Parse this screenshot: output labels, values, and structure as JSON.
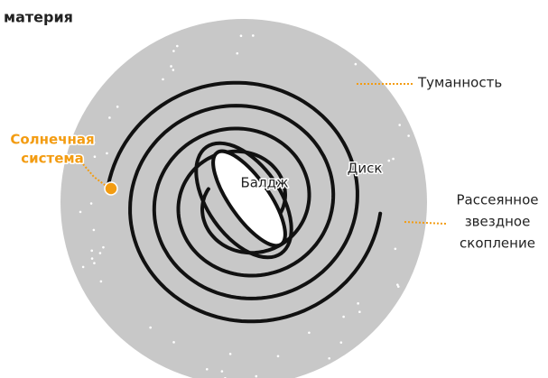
{
  "title": "материя",
  "labels": {
    "nebula": "Туманность",
    "solar_system": [
      "Солнечная",
      "система"
    ],
    "bulge": "Балдж",
    "disk": "Диск",
    "cluster": [
      "Рассеянное",
      "звездное",
      "скопление"
    ]
  }
}
